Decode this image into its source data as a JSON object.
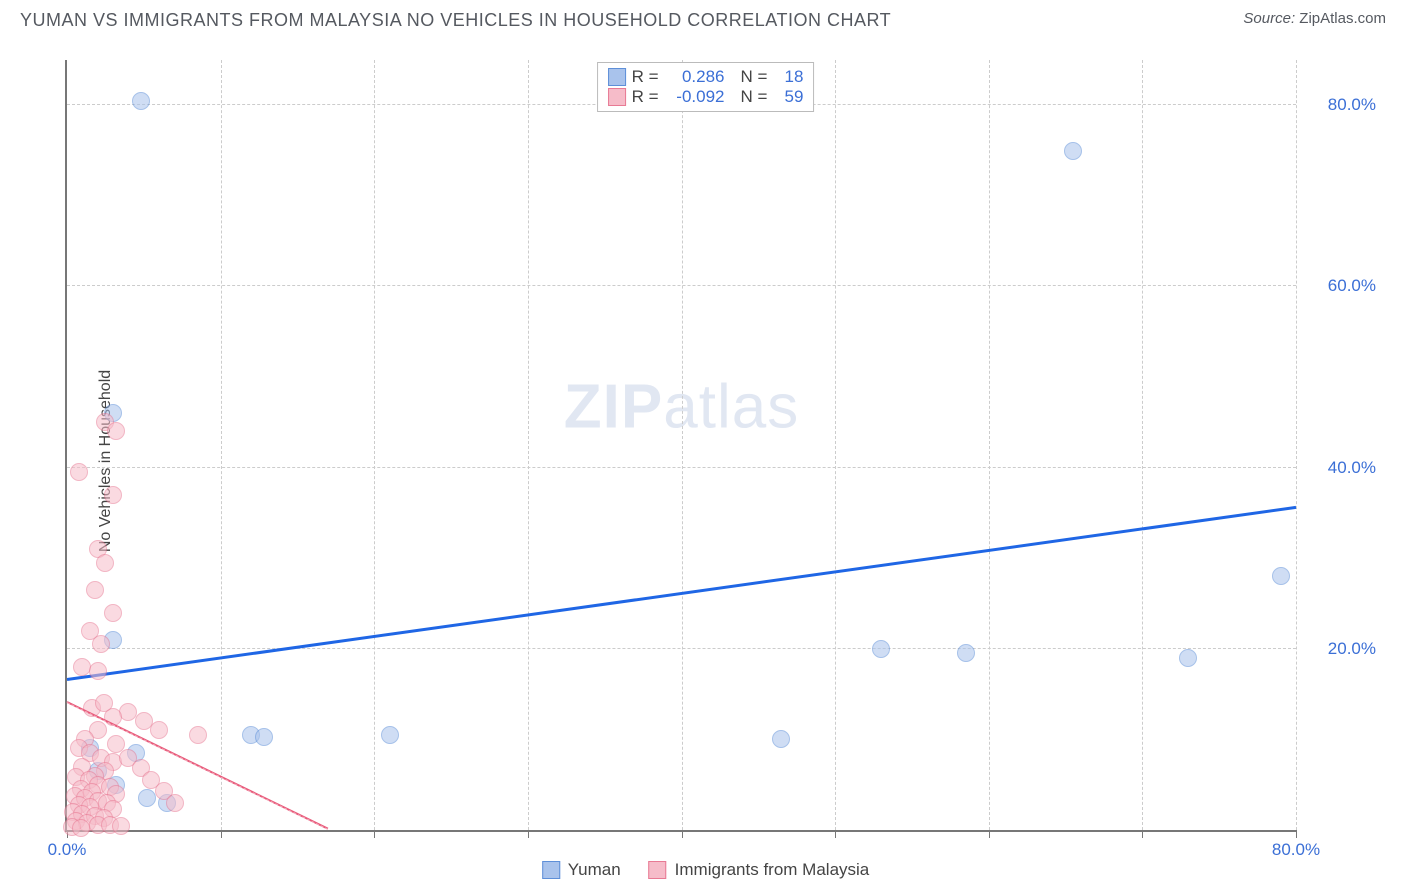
{
  "title": "YUMAN VS IMMIGRANTS FROM MALAYSIA NO VEHICLES IN HOUSEHOLD CORRELATION CHART",
  "source_label": "Source:",
  "source_value": "ZipAtlas.com",
  "y_axis_label": "No Vehicles in Household",
  "watermark_bold": "ZIP",
  "watermark_rest": "atlas",
  "chart": {
    "type": "scatter",
    "xlim": [
      0,
      80
    ],
    "ylim": [
      0,
      85
    ],
    "y_ticks": [
      20,
      40,
      60,
      80
    ],
    "y_tick_labels": [
      "20.0%",
      "40.0%",
      "60.0%",
      "80.0%"
    ],
    "x_ticks": [
      0,
      10,
      20,
      30,
      40,
      50,
      60,
      70,
      80
    ],
    "x_tick_labels_shown": {
      "0": "0.0%",
      "80": "80.0%"
    },
    "grid_color": "#cccccc",
    "axis_color": "#777777",
    "background_color": "#ffffff",
    "tick_label_color": "#3b6fd6",
    "marker_radius": 9,
    "marker_opacity": 0.55,
    "series": [
      {
        "name": "Yuman",
        "fill": "#a9c3ec",
        "stroke": "#5e8fd8",
        "r_value": "0.286",
        "n_value": "18",
        "trend": {
          "x1": 0,
          "y1": 16.5,
          "x2": 80,
          "y2": 35.5,
          "color": "#1f66e5",
          "width": 3,
          "dash": false
        },
        "points": [
          {
            "x": 4.8,
            "y": 80.5
          },
          {
            "x": 65.5,
            "y": 75.0
          },
          {
            "x": 3.0,
            "y": 46.0
          },
          {
            "x": 79.0,
            "y": 28.0
          },
          {
            "x": 73.0,
            "y": 19.0
          },
          {
            "x": 58.5,
            "y": 19.5
          },
          {
            "x": 53.0,
            "y": 20.0
          },
          {
            "x": 46.5,
            "y": 10.0
          },
          {
            "x": 21.0,
            "y": 10.5
          },
          {
            "x": 12.0,
            "y": 10.5
          },
          {
            "x": 12.8,
            "y": 10.3
          },
          {
            "x": 3.0,
            "y": 21.0
          },
          {
            "x": 4.5,
            "y": 8.5
          },
          {
            "x": 5.2,
            "y": 3.5
          },
          {
            "x": 6.5,
            "y": 3.0
          },
          {
            "x": 2.0,
            "y": 6.5
          },
          {
            "x": 3.2,
            "y": 5.0
          },
          {
            "x": 1.5,
            "y": 9.0
          }
        ]
      },
      {
        "name": "Immigrants from Malaysia",
        "fill": "#f6bcc9",
        "stroke": "#e87a94",
        "r_value": "-0.092",
        "n_value": "59",
        "trend": {
          "x1": 0,
          "y1": 14.0,
          "x2": 17,
          "y2": 0.0,
          "color": "#e85a7a",
          "width": 2.5,
          "dash": false
        },
        "trend_ext": {
          "x1": 0,
          "y1": 14.0,
          "x2": 17,
          "y2": 0.0,
          "color": "#f3a9ba",
          "width": 1.5,
          "dash": true
        },
        "points": [
          {
            "x": 2.5,
            "y": 45.0
          },
          {
            "x": 3.2,
            "y": 44.0
          },
          {
            "x": 0.8,
            "y": 39.5
          },
          {
            "x": 3.0,
            "y": 37.0
          },
          {
            "x": 2.0,
            "y": 31.0
          },
          {
            "x": 2.5,
            "y": 29.5
          },
          {
            "x": 1.8,
            "y": 26.5
          },
          {
            "x": 3.0,
            "y": 24.0
          },
          {
            "x": 1.5,
            "y": 22.0
          },
          {
            "x": 2.2,
            "y": 20.5
          },
          {
            "x": 1.0,
            "y": 18.0
          },
          {
            "x": 2.0,
            "y": 17.5
          },
          {
            "x": 8.5,
            "y": 10.5
          },
          {
            "x": 5.0,
            "y": 12.0
          },
          {
            "x": 6.0,
            "y": 11.0
          },
          {
            "x": 4.0,
            "y": 13.0
          },
          {
            "x": 3.0,
            "y": 12.5
          },
          {
            "x": 2.0,
            "y": 11.0
          },
          {
            "x": 1.2,
            "y": 10.0
          },
          {
            "x": 0.8,
            "y": 9.0
          },
          {
            "x": 1.5,
            "y": 8.5
          },
          {
            "x": 2.2,
            "y": 8.0
          },
          {
            "x": 3.0,
            "y": 7.5
          },
          {
            "x": 1.0,
            "y": 7.0
          },
          {
            "x": 2.5,
            "y": 6.5
          },
          {
            "x": 1.8,
            "y": 6.0
          },
          {
            "x": 0.6,
            "y": 5.8
          },
          {
            "x": 1.4,
            "y": 5.5
          },
          {
            "x": 2.0,
            "y": 5.0
          },
          {
            "x": 2.8,
            "y": 4.8
          },
          {
            "x": 0.9,
            "y": 4.5
          },
          {
            "x": 1.6,
            "y": 4.2
          },
          {
            "x": 3.2,
            "y": 4.0
          },
          {
            "x": 0.5,
            "y": 3.8
          },
          {
            "x": 1.2,
            "y": 3.5
          },
          {
            "x": 2.0,
            "y": 3.2
          },
          {
            "x": 2.6,
            "y": 3.0
          },
          {
            "x": 0.8,
            "y": 2.8
          },
          {
            "x": 1.5,
            "y": 2.5
          },
          {
            "x": 3.0,
            "y": 2.3
          },
          {
            "x": 0.4,
            "y": 2.0
          },
          {
            "x": 1.0,
            "y": 1.8
          },
          {
            "x": 1.8,
            "y": 1.5
          },
          {
            "x": 2.4,
            "y": 1.3
          },
          {
            "x": 0.6,
            "y": 1.0
          },
          {
            "x": 1.3,
            "y": 0.8
          },
          {
            "x": 2.0,
            "y": 0.6
          },
          {
            "x": 2.8,
            "y": 0.5
          },
          {
            "x": 3.5,
            "y": 0.4
          },
          {
            "x": 0.3,
            "y": 0.3
          },
          {
            "x": 0.9,
            "y": 0.2
          },
          {
            "x": 1.6,
            "y": 13.5
          },
          {
            "x": 2.4,
            "y": 14.0
          },
          {
            "x": 3.2,
            "y": 9.5
          },
          {
            "x": 4.0,
            "y": 8.0
          },
          {
            "x": 4.8,
            "y": 6.8
          },
          {
            "x": 5.5,
            "y": 5.5
          },
          {
            "x": 6.3,
            "y": 4.3
          },
          {
            "x": 7.0,
            "y": 3.0
          }
        ]
      }
    ],
    "legend_top": {
      "r_label": "R =",
      "n_label": "N ="
    },
    "legend_bottom": [
      {
        "swatch_fill": "#a9c3ec",
        "swatch_stroke": "#5e8fd8",
        "label": "Yuman"
      },
      {
        "swatch_fill": "#f6bcc9",
        "swatch_stroke": "#e87a94",
        "label": "Immigrants from Malaysia"
      }
    ]
  }
}
